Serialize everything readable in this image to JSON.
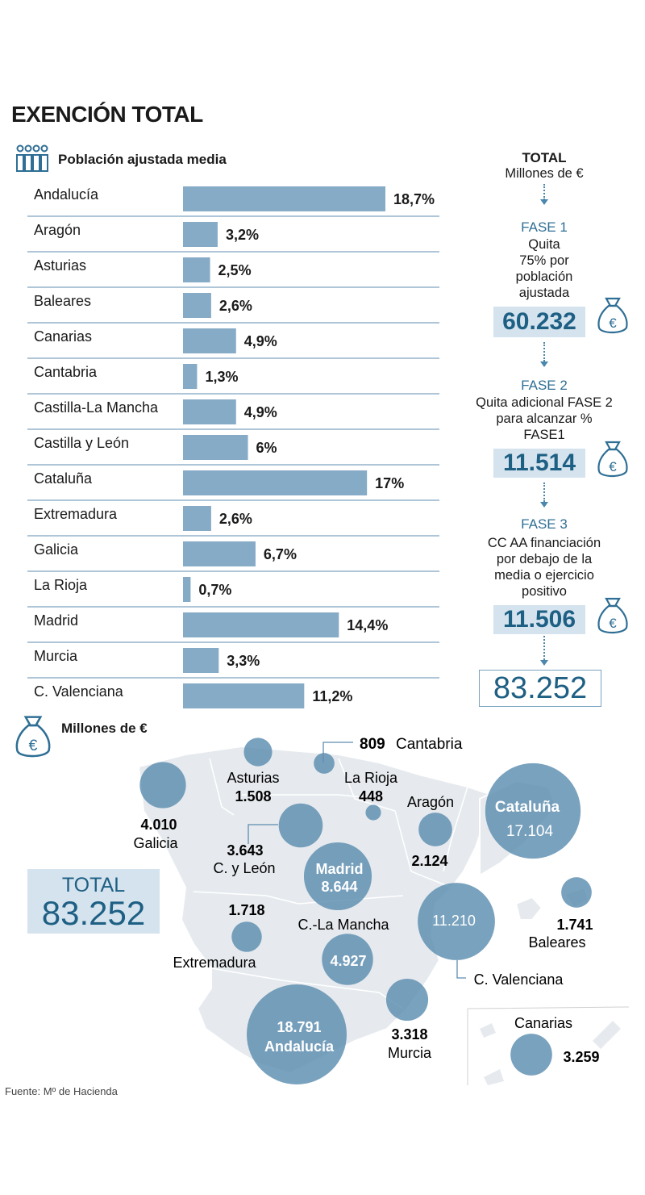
{
  "title": "EXENCIÓN TOTAL",
  "bar_legend": "Población ajustada media",
  "chart_data": [
    {
      "type": "bar",
      "orientation": "horizontal",
      "title": "Población ajustada media",
      "categories": [
        "Andalucía",
        "Aragón",
        "Asturias",
        "Baleares",
        "Canarias",
        "Cantabria",
        "Castilla-La Mancha",
        "Castilla y León",
        "Cataluña",
        "Extremadura",
        "Galicia",
        "La Rioja",
        "Madrid",
        "Murcia",
        "C. Valenciana"
      ],
      "values": [
        18.7,
        3.2,
        2.5,
        2.6,
        4.9,
        1.3,
        4.9,
        6,
        17,
        2.6,
        6.7,
        0.7,
        14.4,
        3.3,
        11.2
      ],
      "value_labels": [
        "18,7%",
        "3,2%",
        "2,5%",
        "2,6%",
        "4,9%",
        "1,3%",
        "4,9%",
        "6%",
        "17%",
        "2,6%",
        "6,7%",
        "0,7%",
        "14,4%",
        "3,3%",
        "11,2%"
      ],
      "unit": "%",
      "color": "#86abc6"
    },
    {
      "type": "bubble-map",
      "title": "Millones de €",
      "regions": [
        {
          "name": "Cantabria",
          "label": "Cantabria",
          "value": 809,
          "value_label": "809"
        },
        {
          "name": "Asturias",
          "label": "Asturias",
          "value": 1508,
          "value_label": "1.508"
        },
        {
          "name": "La Rioja",
          "label": "La Rioja",
          "value": 448,
          "value_label": "448"
        },
        {
          "name": "Aragón",
          "label": "Aragón",
          "value": 2124,
          "value_label": "2.124"
        },
        {
          "name": "Cataluña",
          "label": "Cataluña",
          "value": 17104,
          "value_label": "17.104"
        },
        {
          "name": "Galicia",
          "label": "Galicia",
          "value": 4010,
          "value_label": "4.010"
        },
        {
          "name": "Castilla y León",
          "label": "C. y León",
          "value": 3643,
          "value_label": "3.643"
        },
        {
          "name": "Madrid",
          "label": "Madrid",
          "value": 8644,
          "value_label": "8.644"
        },
        {
          "name": "Baleares",
          "label": "Baleares",
          "value": 1741,
          "value_label": "1.741"
        },
        {
          "name": "Extremadura",
          "label": "Extremadura",
          "value": 1718,
          "value_label": "1.718"
        },
        {
          "name": "Castilla-La Mancha",
          "label": "C.-La Mancha",
          "value": 4927,
          "value_label": "4.927"
        },
        {
          "name": "C. Valenciana",
          "label": "C. Valenciana",
          "value": 11210,
          "value_label": "11.210"
        },
        {
          "name": "Murcia",
          "label": "Murcia",
          "value": 3318,
          "value_label": "3.318"
        },
        {
          "name": "Andalucía",
          "label": "Andalucía",
          "value": 18791,
          "value_label": "18.791"
        },
        {
          "name": "Canarias",
          "label": "Canarias",
          "value": 3259,
          "value_label": "3.259"
        }
      ],
      "colors": {
        "bubble": "#5b8db0",
        "map": "#e6eaee"
      }
    }
  ],
  "right": {
    "total_title": "TOTAL",
    "total_unit": "Millones de €",
    "fase1": {
      "title": "FASE 1",
      "desc": [
        "Quita",
        "75% por",
        "población",
        "ajustada"
      ],
      "value": "60.232"
    },
    "fase2": {
      "title": "FASE 2",
      "desc": [
        "Quita adicional FASE 2",
        "para alcanzar %",
        "FASE1"
      ],
      "value": "11.514"
    },
    "fase3": {
      "title": "FASE 3",
      "desc": [
        "CC AA financiación",
        "por debajo de la",
        "media o ejercicio",
        "positivo"
      ],
      "value": "11.506"
    },
    "total_value": "83.252"
  },
  "map_legend": "Millones de €",
  "map_total": {
    "label": "TOTAL",
    "value": "83.252"
  },
  "source": "Fuente: Mº de Hacienda",
  "colors": {
    "bar": "#86abc6",
    "accent": "#1e5f84",
    "box": "#d4e3ee",
    "bubble": "#5b8db0",
    "line": "#5e8cb0"
  }
}
